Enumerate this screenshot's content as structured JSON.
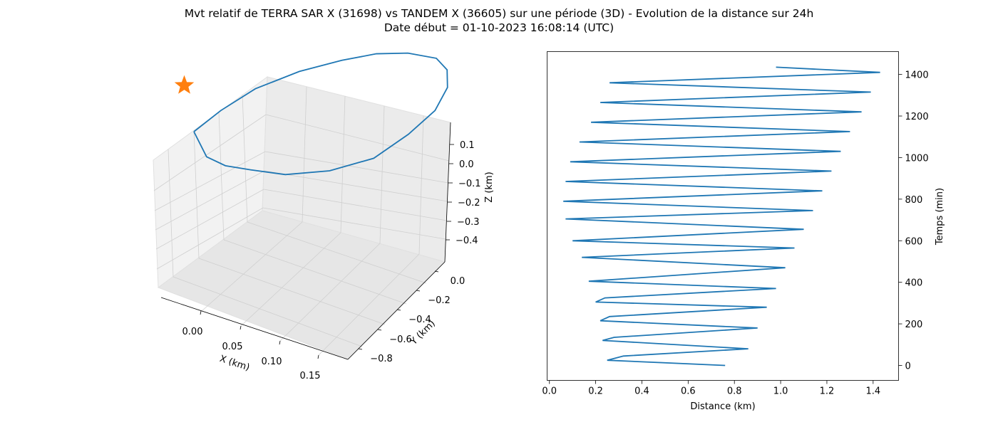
{
  "title_line1": "Mvt relatif de TERRA SAR X (31698) vs TANDEM X (36605) sur une période (3D) - Evolution de la distance sur 24h",
  "title_line2": "Date début = 01-10-2023 16:08:14 (UTC)",
  "colors": {
    "series": "#1f77b4",
    "marker": "#ff7f0e",
    "pane": "#f2f2f2",
    "grid": "#cccccc"
  },
  "chart_data": [
    {
      "type": "line3d",
      "xlabel": "X (km)",
      "ylabel": "Y (km)",
      "zlabel": "Z (km)",
      "xlim": [
        -0.03,
        0.18
      ],
      "ylim": [
        -0.85,
        0.05
      ],
      "zlim": [
        -0.45,
        0.15
      ],
      "xticks": [
        "0.00",
        "0.05",
        "0.10",
        "0.15"
      ],
      "yticks": [
        "0.0",
        "−0.2",
        "−0.4",
        "−0.6",
        "−0.8"
      ],
      "zticks": [
        "0.1",
        "0.0",
        "−0.1",
        "−0.2",
        "−0.3",
        "−0.4"
      ],
      "grid": true,
      "series": [
        {
          "points": [
            [
              0.0,
              0.0,
              0.0
            ],
            [
              0.01,
              -0.02,
              -0.12
            ],
            [
              0.02,
              -0.08,
              -0.2
            ],
            [
              0.035,
              -0.15,
              -0.26
            ],
            [
              0.06,
              -0.22,
              -0.31
            ],
            [
              0.09,
              -0.32,
              -0.34
            ],
            [
              0.12,
              -0.42,
              -0.33
            ],
            [
              0.14,
              -0.52,
              -0.28
            ],
            [
              0.155,
              -0.6,
              -0.22
            ],
            [
              0.16,
              -0.65,
              -0.15
            ],
            [
              0.158,
              -0.66,
              -0.08
            ],
            [
              0.15,
              -0.64,
              -0.02
            ],
            [
              0.13,
              -0.58,
              0.03
            ],
            [
              0.11,
              -0.5,
              0.07
            ],
            [
              0.09,
              -0.4,
              0.1
            ],
            [
              0.065,
              -0.28,
              0.12
            ],
            [
              0.04,
              -0.15,
              0.12
            ],
            [
              0.02,
              -0.05,
              0.08
            ],
            [
              0.0,
              0.0,
              0.0
            ]
          ]
        }
      ],
      "marker": {
        "type": "star",
        "point": [
          -0.01,
          0.0,
          0.2
        ]
      }
    },
    {
      "type": "line",
      "xlabel": "Distance (km)",
      "ylabel": "Temps (min)",
      "xlim": [
        -0.01,
        1.51
      ],
      "ylim": [
        -72,
        1510
      ],
      "xticks": [
        0.0,
        0.2,
        0.4,
        0.6,
        0.8,
        1.0,
        1.2,
        1.4
      ],
      "yticks": [
        0,
        200,
        400,
        600,
        800,
        1000,
        1200,
        1400
      ],
      "xtick_labels": [
        "0.0",
        "0.2",
        "0.4",
        "0.6",
        "0.8",
        "1.0",
        "1.2",
        "1.4"
      ],
      "ytick_labels": [
        "0",
        "200",
        "400",
        "600",
        "800",
        "1000",
        "1200",
        "1400"
      ],
      "y_axis_side": "right",
      "grid": false,
      "series": [
        {
          "x": [
            0.76,
            0.25,
            0.32,
            0.86,
            0.23,
            0.28,
            0.9,
            0.22,
            0.26,
            0.94,
            0.2,
            0.24,
            0.98,
            0.17,
            1.02,
            0.14,
            1.06,
            0.1,
            1.1,
            0.07,
            1.14,
            0.06,
            1.18,
            0.07,
            1.22,
            0.09,
            1.26,
            0.13,
            1.3,
            0.18,
            1.35,
            0.22,
            1.39,
            0.26,
            1.43,
            0.98
          ],
          "y": [
            0,
            25,
            45,
            80,
            120,
            135,
            180,
            215,
            235,
            280,
            305,
            325,
            370,
            405,
            470,
            520,
            565,
            600,
            655,
            705,
            745,
            790,
            840,
            885,
            935,
            980,
            1030,
            1075,
            1125,
            1170,
            1220,
            1265,
            1315,
            1360,
            1410,
            1435
          ]
        }
      ]
    }
  ]
}
